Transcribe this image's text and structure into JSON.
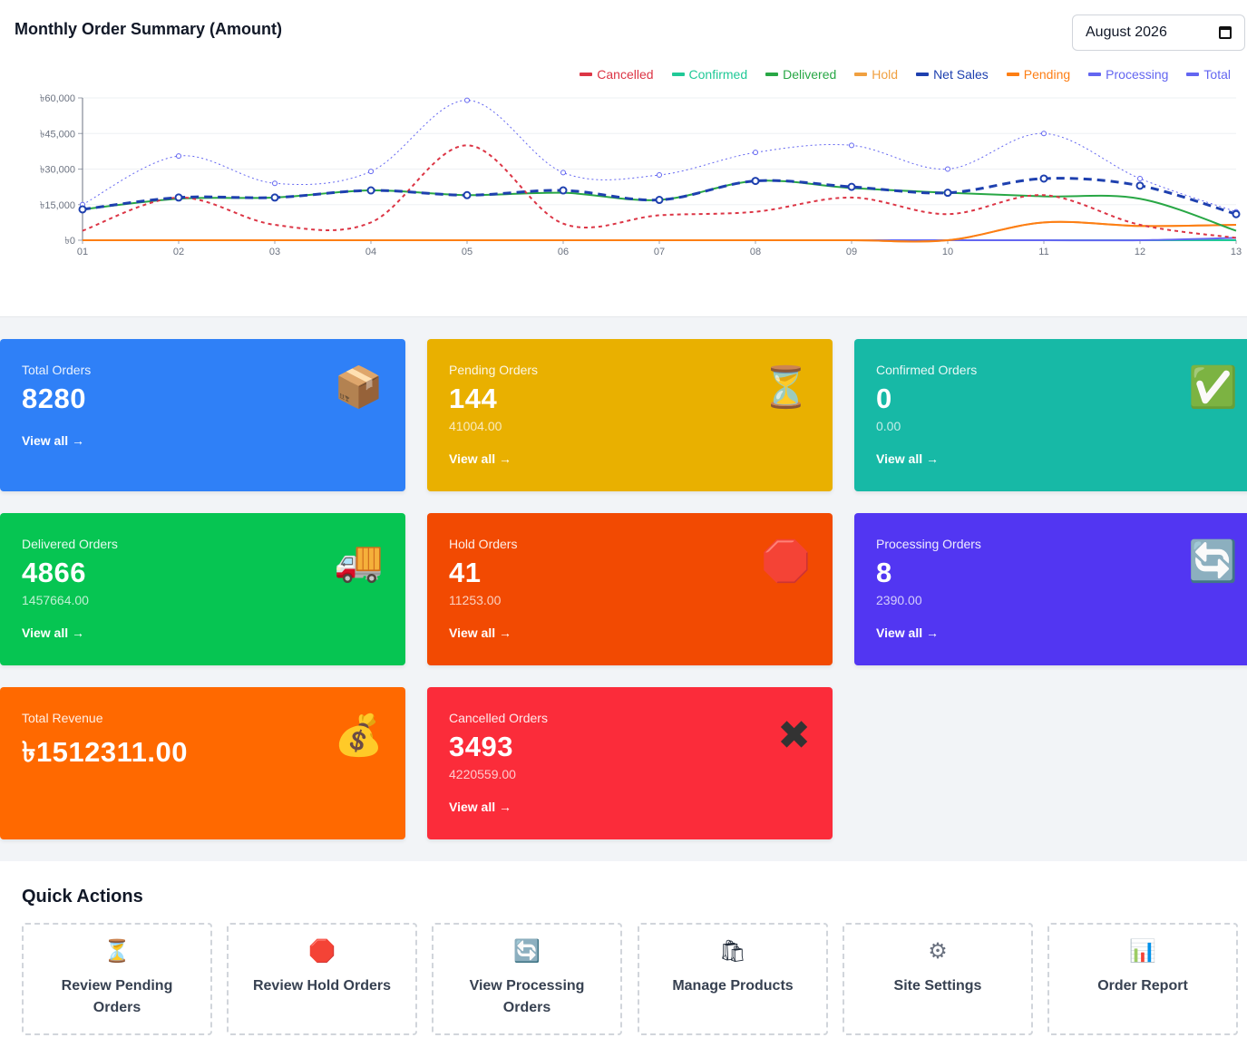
{
  "chart_panel": {
    "title": "Monthly Order Summary (Amount)",
    "month_value": "August 2026"
  },
  "chart_data": {
    "type": "line",
    "currency_symbol": "৳",
    "ylim": [
      0,
      60000
    ],
    "yticks": [
      0,
      15000,
      30000,
      45000,
      60000
    ],
    "ytick_labels": [
      "৳0",
      "৳15,000",
      "৳30,000",
      "৳45,000",
      "৳60,000"
    ],
    "categories": [
      "01",
      "02",
      "03",
      "04",
      "05",
      "06",
      "07",
      "08",
      "09",
      "10",
      "11",
      "12",
      "13"
    ],
    "grid": true,
    "legend_position": "top-right",
    "series": [
      {
        "name": "Cancelled",
        "color": "#dc3545",
        "style": "dashed",
        "values": [
          4000,
          18000,
          6500,
          7500,
          40000,
          7000,
          10500,
          12000,
          18000,
          11000,
          19000,
          6500,
          1000
        ]
      },
      {
        "name": "Confirmed",
        "color": "#20c997",
        "style": "solid",
        "values": [
          0,
          0,
          0,
          0,
          0,
          0,
          0,
          0,
          0,
          0,
          0,
          0,
          0
        ]
      },
      {
        "name": "Delivered",
        "color": "#28a745",
        "style": "solid",
        "values": [
          13000,
          17500,
          18000,
          21000,
          19000,
          20000,
          17000,
          25000,
          22000,
          20000,
          18500,
          17500,
          4000
        ]
      },
      {
        "name": "Hold",
        "color": "#f0a040",
        "style": "solid",
        "values": [
          0,
          0,
          0,
          0,
          0,
          0,
          0,
          0,
          0,
          0,
          7500,
          6000,
          6500
        ]
      },
      {
        "name": "Net Sales",
        "color": "#1e40af",
        "style": "dashed",
        "values": [
          13000,
          18000,
          18000,
          21000,
          19000,
          21000,
          17000,
          25000,
          22500,
          20000,
          26000,
          23000,
          11000
        ]
      },
      {
        "name": "Pending",
        "color": "#fd7e14",
        "style": "solid",
        "values": [
          0,
          0,
          0,
          0,
          0,
          0,
          0,
          0,
          0,
          0,
          7500,
          6000,
          6500
        ]
      },
      {
        "name": "Processing",
        "color": "#6366f1",
        "style": "solid",
        "values": [
          0,
          0,
          0,
          0,
          0,
          0,
          0,
          0,
          0,
          0,
          0,
          0,
          1000
        ]
      },
      {
        "name": "Total",
        "color": "#6366f1",
        "style": "dotted",
        "values": [
          15000,
          35500,
          24000,
          29000,
          59000,
          28500,
          27500,
          37000,
          40000,
          30000,
          45000,
          26000,
          12000
        ]
      }
    ]
  },
  "cards": [
    {
      "label": "Total Orders",
      "value": "8280",
      "sub": "",
      "link": "View all →",
      "icon": "package-icon",
      "glyph": "📦",
      "color": "#2f80f7"
    },
    {
      "label": "Pending Orders",
      "value": "144",
      "sub": "41004.00",
      "link": "View all →",
      "icon": "hourglass-icon",
      "glyph": "⏳",
      "color": "#e9b000"
    },
    {
      "label": "Confirmed Orders",
      "value": "0",
      "sub": "0.00",
      "link": "View all →",
      "icon": "check-mark-icon",
      "glyph": "✅",
      "color": "#17b9a6"
    },
    {
      "label": "Delivered Orders",
      "value": "4866",
      "sub": "1457664.00",
      "link": "View all →",
      "icon": "delivery-truck-icon",
      "glyph": "🚚",
      "color": "#06c552"
    },
    {
      "label": "Hold Orders",
      "value": "41",
      "sub": "11253.00",
      "link": "View all →",
      "icon": "stop-sign-icon",
      "glyph": "🛑",
      "color": "#f24a02"
    },
    {
      "label": "Processing Orders",
      "value": "8",
      "sub": "2390.00",
      "link": "View all →",
      "icon": "refresh-icon",
      "glyph": "🔄",
      "color": "#5236f2"
    },
    {
      "label": "Total Revenue",
      "value": "৳1512311.00",
      "sub": "",
      "link": "",
      "icon": "money-bag-icon",
      "glyph": "💰",
      "color": "#ff6900"
    },
    {
      "label": "Cancelled Orders",
      "value": "3493",
      "sub": "4220559.00",
      "link": "View all →",
      "icon": "cross-mark-icon",
      "glyph": "✖",
      "color": "#fb2c3a"
    }
  ],
  "quick_actions": {
    "title": "Quick Actions",
    "items": [
      {
        "label": "Review Pending Orders",
        "icon": "hourglass-icon",
        "glyph": "⏳"
      },
      {
        "label": "Review Hold Orders",
        "icon": "stop-sign-icon",
        "glyph": "🛑"
      },
      {
        "label": "View Processing Orders",
        "icon": "refresh-icon",
        "glyph": "🔄"
      },
      {
        "label": "Manage Products",
        "icon": "shopping-bags-icon",
        "glyph": "🛍"
      },
      {
        "label": "Site Settings",
        "icon": "gear-icon",
        "glyph": "⚙"
      },
      {
        "label": "Order Report",
        "icon": "bar-chart-icon",
        "glyph": "📊"
      }
    ]
  }
}
